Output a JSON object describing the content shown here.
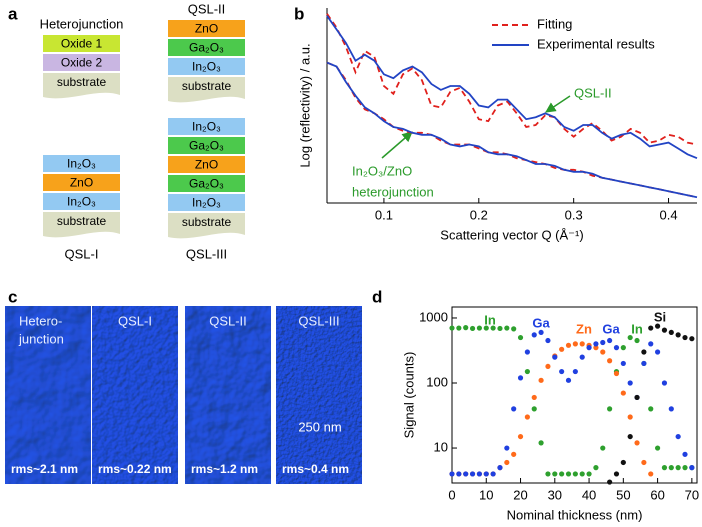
{
  "panel_labels": [
    "a",
    "b",
    "c",
    "d"
  ],
  "schematic": {
    "stacks": [
      {
        "title": "Heterojunction",
        "layers": [
          {
            "text": "Oxide 1",
            "color": "#c8e632"
          },
          {
            "text": "Oxide 2",
            "color": "#c9b6e2"
          },
          {
            "text": "substrate",
            "color": "#dcdfc4"
          }
        ]
      },
      {
        "title": "QSL-II",
        "layers": [
          {
            "text": "ZnO",
            "color": "#f7a21b"
          },
          {
            "text": "Ga₂O₃",
            "color": "#4cc94c"
          },
          {
            "text": "In₂O₃",
            "color": "#93c9f2"
          },
          {
            "text": "substrate",
            "color": "#dcdfc4"
          }
        ]
      },
      {
        "label": "QSL-I",
        "layers": [
          {
            "text": "In₂O₃",
            "color": "#93c9f2"
          },
          {
            "text": "ZnO",
            "color": "#f7a21b"
          },
          {
            "text": "In₂O₃",
            "color": "#93c9f2"
          },
          {
            "text": "substrate",
            "color": "#dcdfc4"
          }
        ]
      },
      {
        "label": "QSL-III",
        "layers": [
          {
            "text": "In₂O₃",
            "color": "#93c9f2"
          },
          {
            "text": "Ga₂O₃",
            "color": "#4cc94c"
          },
          {
            "text": "ZnO",
            "color": "#f7a21b"
          },
          {
            "text": "Ga₂O₃",
            "color": "#4cc94c"
          },
          {
            "text": "In₂O₃",
            "color": "#93c9f2"
          },
          {
            "text": "substrate",
            "color": "#dcdfc4"
          }
        ]
      }
    ]
  },
  "chart_data": [
    {
      "type": "line",
      "x_label": "Scattering vector Q (Å⁻¹)",
      "y_label": "Log (reflectivity) / a.u.",
      "xlim": [
        0.04,
        0.43
      ],
      "xticks": [
        0.1,
        0.2,
        0.3,
        0.4
      ],
      "ylim": [
        0,
        10
      ],
      "legend": "upper right",
      "x": [
        0.04,
        0.05,
        0.06,
        0.07,
        0.08,
        0.09,
        0.1,
        0.11,
        0.12,
        0.13,
        0.14,
        0.15,
        0.16,
        0.17,
        0.18,
        0.19,
        0.2,
        0.21,
        0.22,
        0.23,
        0.24,
        0.25,
        0.26,
        0.27,
        0.28,
        0.29,
        0.3,
        0.31,
        0.32,
        0.33,
        0.34,
        0.35,
        0.36,
        0.37,
        0.38,
        0.39,
        0.4,
        0.41,
        0.42,
        0.43
      ],
      "series": [
        {
          "name": "Fitting",
          "color": "#e0201c",
          "dashed": true,
          "values": [
            [
              9.7,
              9.0,
              8.0,
              6.7,
              7.8,
              7.5,
              6.0,
              5.6,
              6.6,
              6.9,
              6.3,
              5.0,
              4.9,
              5.7,
              5.9,
              5.2,
              4.3,
              4.2,
              5.0,
              5.2,
              4.6,
              3.9,
              4.0,
              4.5,
              4.4,
              3.8,
              3.4,
              3.8,
              4.1,
              3.7,
              3.2,
              3.4,
              3.8,
              3.6,
              3.1,
              3.2,
              3.5,
              3.4,
              3.1,
              3.0
            ],
            [
              7.2,
              7.0,
              6.3,
              5.4,
              4.8,
              4.6,
              4.3,
              3.9,
              3.7,
              3.6,
              3.6,
              3.5,
              3.2,
              3.0,
              3.0,
              3.0,
              2.8,
              2.6,
              2.6,
              2.5,
              2.3,
              2.2,
              2.1,
              2.0,
              1.8,
              1.7,
              1.7,
              1.6,
              1.4,
              1.3,
              1.2,
              1.1,
              1.0,
              0.9,
              0.8,
              0.7,
              0.6,
              0.5,
              0.4,
              0.3
            ]
          ]
        },
        {
          "name": "Experimental results",
          "color": "#2244c4",
          "dashed": false,
          "values": [
            [
              9.6,
              8.9,
              8.2,
              7.3,
              7.6,
              7.3,
              6.6,
              6.4,
              6.8,
              7.0,
              6.7,
              6.1,
              5.8,
              6.0,
              6.0,
              5.6,
              5.0,
              4.9,
              5.3,
              5.3,
              4.8,
              4.3,
              4.4,
              4.6,
              4.4,
              3.9,
              3.7,
              4.0,
              4.0,
              3.6,
              3.3,
              3.5,
              3.6,
              3.3,
              2.9,
              3.0,
              3.1,
              2.8,
              2.5,
              2.3
            ],
            [
              7.2,
              7.0,
              6.2,
              5.5,
              4.9,
              4.6,
              4.2,
              3.9,
              3.8,
              3.6,
              3.5,
              3.5,
              3.3,
              3.0,
              2.9,
              3.0,
              2.9,
              2.6,
              2.5,
              2.5,
              2.4,
              2.2,
              2.0,
              2.0,
              1.9,
              1.7,
              1.6,
              1.6,
              1.5,
              1.3,
              1.2,
              1.1,
              1.0,
              0.9,
              0.8,
              0.7,
              0.6,
              0.5,
              0.4,
              0.3
            ]
          ]
        }
      ],
      "annotations": [
        {
          "text": "QSL-II",
          "color": "#2a9a2a"
        },
        {
          "text": "In₂O₃/ZnO",
          "color": "#2a9a2a"
        },
        {
          "text": "heterojunction",
          "color": "#2a9a2a"
        }
      ]
    },
    {
      "type": "scatter",
      "x_label": "Nominal thickness (nm)",
      "y_label": "Signal (counts)",
      "ylog": true,
      "xlim": [
        0,
        71.5
      ],
      "xticks": [
        0,
        10,
        20,
        30,
        40,
        50,
        60,
        70
      ],
      "ylim": [
        2.9,
        1475
      ],
      "yticks": [
        10,
        100,
        1000
      ],
      "x": [
        0,
        2,
        4,
        6,
        8,
        10,
        12,
        14,
        16,
        18,
        20,
        22,
        24,
        26,
        28,
        30,
        32,
        34,
        36,
        38,
        40,
        42,
        44,
        46,
        48,
        50,
        52,
        54,
        56,
        58,
        60,
        62,
        64,
        66,
        68,
        70
      ],
      "series": [
        {
          "name": "In",
          "color": "#2ea02e",
          "values": [
            700,
            700,
            710,
            690,
            700,
            700,
            700,
            690,
            700,
            680,
            500,
            150,
            40,
            12,
            4,
            4,
            4,
            4,
            4,
            4,
            4,
            5,
            10,
            40,
            150,
            350,
            500,
            450,
            200,
            40,
            10,
            5,
            5,
            5,
            5,
            5
          ]
        },
        {
          "name": "Zn",
          "color": "#ff6a1a",
          "values": [
            4,
            4,
            4,
            4,
            4,
            4,
            4,
            5,
            6,
            8,
            15,
            30,
            60,
            110,
            180,
            260,
            330,
            380,
            400,
            400,
            380,
            350,
            300,
            220,
            140,
            70,
            30,
            12,
            6,
            4,
            null,
            null,
            null,
            null,
            null,
            null
          ]
        },
        {
          "name": "Ga",
          "color": "#2040e0",
          "values": [
            4,
            4,
            4,
            4,
            4,
            4,
            4,
            5,
            10,
            40,
            120,
            300,
            550,
            600,
            450,
            250,
            150,
            110,
            150,
            250,
            350,
            400,
            420,
            450,
            350,
            200,
            100,
            60,
            200,
            400,
            300,
            100,
            40,
            15,
            8,
            5
          ]
        },
        {
          "name": "Si",
          "color": "#111111",
          "values": [
            null,
            null,
            null,
            null,
            null,
            null,
            null,
            null,
            null,
            null,
            null,
            null,
            null,
            null,
            null,
            null,
            null,
            null,
            null,
            null,
            null,
            null,
            null,
            3,
            4,
            6,
            15,
            60,
            300,
            700,
            750,
            650,
            600,
            550,
            500,
            480
          ]
        }
      ],
      "annotations": [
        {
          "text": "In",
          "color": "#2ea02e"
        },
        {
          "text": "Ga",
          "color": "#2040e0"
        },
        {
          "text": "Zn",
          "color": "#ff6a1a"
        },
        {
          "text": "Ga",
          "color": "#2040e0"
        },
        {
          "text": "In",
          "color": "#2ea02e"
        },
        {
          "text": "Si",
          "color": "#111111"
        }
      ]
    }
  ],
  "afm": {
    "tiles": [
      {
        "title": [
          "Hetero-",
          "junction"
        ],
        "rms": "rms~2.1 nm"
      },
      {
        "title": [
          "QSL-I"
        ],
        "rms": "rms~0.22 nm"
      },
      {
        "title": [
          "QSL-II"
        ],
        "rms": "rms~1.2 nm"
      },
      {
        "title": [
          "QSL-III"
        ],
        "rms": "rms~0.4 nm"
      }
    ],
    "scale_bar": "250 nm"
  }
}
